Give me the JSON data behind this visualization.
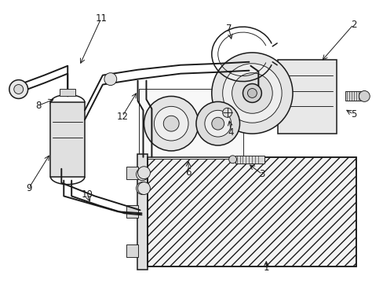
{
  "background_color": "#ffffff",
  "line_color": "#1a1a1a",
  "fig_width": 4.89,
  "fig_height": 3.6,
  "dpi": 100,
  "lw_main": 1.1,
  "lw_thin": 0.65,
  "lw_hose": 1.4
}
